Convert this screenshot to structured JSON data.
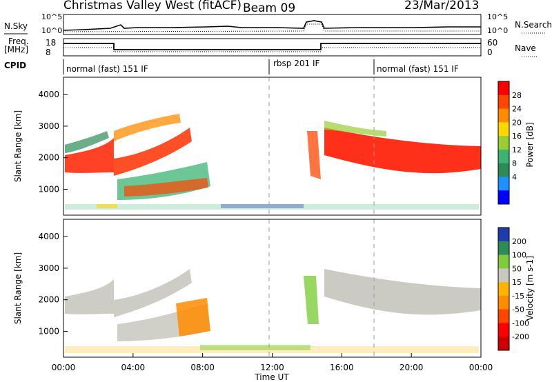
{
  "header": {
    "site": "Christmas Valley West (fitACF)",
    "beam": "Beam 09",
    "date": "23/Mar/2013"
  },
  "nsky_panel": {
    "left_label": "N.Sky",
    "right_label": "N.Search",
    "left_ticks": [
      "10^5",
      "10^0"
    ],
    "right_ticks": [
      "10^5",
      "10^0"
    ]
  },
  "freq_panel": {
    "left_label_1": "Freq.",
    "left_label_2": "[MHz]",
    "right_label": "Nave",
    "left_ticks": [
      "18",
      "8"
    ],
    "right_ticks": [
      "60",
      "0"
    ]
  },
  "cpid": {
    "label": "CPID",
    "modes": [
      "normal (fast) 151 IF",
      "rbsp 201 IF",
      "normal (fast) 151 IF"
    ]
  },
  "x_axis": {
    "label": "Time UT",
    "ticks": [
      "00:00",
      "04:00",
      "08:00",
      "12:00",
      "16:00",
      "20:00",
      "00:00"
    ]
  },
  "power_panel": {
    "ylabel": "Slant Range [km]",
    "yticks": [
      "4000",
      "3000",
      "2000",
      "1000"
    ],
    "cbar_label": "Power [dB]",
    "cbar_ticks": [
      "28",
      "24",
      "20",
      "16",
      "12",
      "8",
      "4"
    ],
    "cbar_colors": [
      "#ff0000",
      "#ff4500",
      "#ff8c00",
      "#ffd700",
      "#9acd32",
      "#3cb371",
      "#2e8b57",
      "#1e90ff",
      "#0000ff"
    ]
  },
  "velocity_panel": {
    "ylabel": "Slant Range [km]",
    "yticks": [
      "4000",
      "3000",
      "2000",
      "1000"
    ],
    "cbar_label": "Velocity [m s-1]",
    "cbar_ticks": [
      "200",
      "100",
      "50",
      "15",
      "-15",
      "-50",
      "-100",
      "-200"
    ],
    "cbar_colors": [
      "#1e3caa",
      "#2e8b57",
      "#7fcd3c",
      "#c8c8c0",
      "#ffb400",
      "#ff8c00",
      "#ff4500",
      "#ff0000",
      "#cc0000"
    ]
  }
}
